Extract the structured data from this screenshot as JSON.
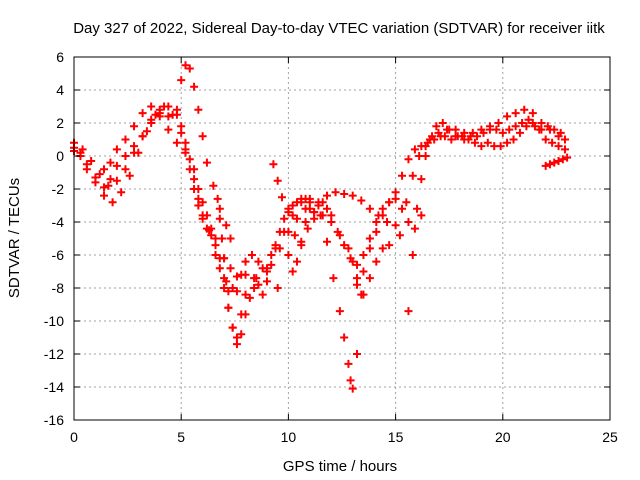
{
  "chart_data": {
    "type": "scatter",
    "title": "Day 327 of 2022, Sidereal Day-to-day VTEC variation (SDTVAR) for receiver iitk",
    "xlabel": "GPS time / hours",
    "ylabel": "SDTVAR / TECUs",
    "xlim": [
      0,
      25
    ],
    "ylim": [
      -16,
      6
    ],
    "xticks": [
      "0",
      "5",
      "10",
      "15",
      "20",
      "25"
    ],
    "yticks": [
      "6",
      "4",
      "2",
      "0",
      "-2",
      "-4",
      "-6",
      "-8",
      "-10",
      "-12",
      "-14",
      "-16"
    ],
    "grid": true,
    "marker": "+",
    "color": "#ff0000",
    "series": [
      {
        "x": [
          0.0,
          0.3,
          0.6,
          1.0,
          1.4,
          1.7,
          2.0,
          2.4,
          2.8,
          3.2,
          3.6,
          4.0,
          4.4,
          4.8,
          5.0,
          5.2,
          5.4,
          5.6,
          5.8,
          6.0,
          6.3,
          6.6,
          7.0,
          7.3,
          7.6,
          8.0,
          8.5,
          9.0,
          9.5
        ],
        "y": [
          0.5,
          0.2,
          -0.5,
          -1.3,
          -1.9,
          -1.4,
          -0.6,
          0.0,
          0.6,
          1.2,
          2.0,
          2.6,
          3.0,
          2.5,
          1.8,
          0.8,
          -0.2,
          -1.4,
          -2.6,
          -3.6,
          -4.5,
          -5.4,
          -6.2,
          -6.8,
          -7.3,
          -7.2,
          -7.4,
          -7.0,
          -8.0
        ]
      },
      {
        "x": [
          0.0,
          0.4,
          0.8,
          1.2,
          1.6,
          2.0,
          2.4,
          2.8,
          3.2,
          3.6,
          4.0,
          4.4,
          4.8,
          5.0,
          5.2,
          5.4,
          5.6,
          5.8,
          6.0,
          6.2,
          6.5,
          6.8,
          7.1,
          7.3
        ],
        "y": [
          0.8,
          0.4,
          -0.3,
          -1.1,
          -1.8,
          -1.5,
          -0.8,
          0.2,
          1.2,
          2.2,
          2.8,
          2.4,
          2.8,
          4.6,
          5.5,
          5.3,
          4.2,
          2.8,
          1.2,
          -0.4,
          -1.8,
          -3.2,
          -4.2,
          -5.0
        ]
      },
      {
        "x": [
          0.0,
          0.3,
          0.6,
          1.0,
          1.4,
          1.8,
          2.2,
          2.6,
          3.0,
          3.4,
          3.8,
          4.2,
          4.6,
          5.0,
          5.2,
          5.4,
          5.6,
          5.8,
          6.0,
          6.2,
          6.4
        ],
        "y": [
          0.3,
          0.0,
          -0.8,
          -1.6,
          -2.4,
          -2.8,
          -2.2,
          -1.2,
          0.2,
          1.5,
          2.5,
          3.0,
          2.5,
          1.4,
          0.4,
          -0.8,
          -2.0,
          -3.0,
          -3.8,
          -4.4,
          -4.8
        ]
      },
      {
        "x": [
          1.4,
          1.7,
          2.0,
          2.4,
          2.8,
          3.2,
          3.6,
          4.0,
          4.4,
          4.8,
          5.2,
          5.6,
          5.8,
          6.0,
          6.2,
          6.4,
          6.6,
          6.8,
          7.0,
          7.2,
          7.4,
          7.6,
          7.8,
          8.0,
          8.4,
          8.8,
          9.2,
          9.6,
          10.0,
          10.4,
          10.8,
          11.2,
          11.6,
          12.0,
          12.4,
          12.8,
          13.0,
          13.2,
          13.4
        ],
        "y": [
          -0.8,
          -0.4,
          0.4,
          1.0,
          1.8,
          2.6,
          3.0,
          2.4,
          1.6,
          0.8,
          0.2,
          -0.8,
          -2.0,
          -2.8,
          -3.6,
          -4.4,
          -5.0,
          -6.2,
          -8.0,
          -9.2,
          -10.4,
          -11.0,
          -9.6,
          -8.4,
          -7.4,
          -6.8,
          -6.0,
          -5.6,
          -4.6,
          -3.8,
          -3.2,
          -3.4,
          -3.6,
          -4.0,
          -4.8,
          -5.6,
          -6.4,
          -7.4,
          -8.4
        ]
      },
      {
        "x": [
          6.6,
          6.8,
          7.0,
          7.2,
          7.4,
          7.6,
          7.8,
          8.0,
          8.3,
          8.6,
          9.0,
          9.4,
          9.8,
          10.2,
          10.6,
          11.0,
          11.4,
          11.8,
          12.2,
          12.6,
          13.0,
          13.4,
          13.8,
          14.2,
          14.6,
          15.0
        ],
        "y": [
          -6.0,
          -6.8,
          -7.4,
          -8.2,
          -8.0,
          -8.2,
          -7.2,
          -6.4,
          -6.0,
          -6.4,
          -6.8,
          -5.6,
          -4.6,
          -3.6,
          -2.8,
          -2.6,
          -2.8,
          -2.4,
          -2.2,
          -2.3,
          -2.4,
          -2.7,
          -3.2,
          -3.6,
          -4.0,
          -4.2
        ]
      },
      {
        "x": [
          6.7,
          6.8,
          6.9,
          7.0,
          7.1,
          7.2,
          7.4,
          7.6,
          7.8,
          8.0,
          8.2,
          8.4,
          8.6,
          8.8,
          9.0,
          9.2,
          9.4,
          9.6,
          9.8,
          10.0,
          10.2,
          10.4,
          10.6,
          10.8,
          11.0
        ],
        "y": [
          -2.6,
          -3.8,
          -5.0,
          -6.2,
          -7.6,
          -9.2,
          -10.4,
          -11.4,
          -10.8,
          -9.6,
          -8.6,
          -8.0,
          -7.8,
          -8.4,
          -7.6,
          -6.6,
          -5.4,
          -4.6,
          -3.8,
          -3.2,
          -3.0,
          -2.8,
          -2.6,
          -2.6,
          -2.8
        ]
      },
      {
        "x": [
          9.3,
          9.5,
          9.7,
          10.0,
          10.3,
          10.6,
          10.9,
          11.2,
          11.5,
          11.8,
          12.1,
          12.4,
          12.6,
          12.8,
          12.9,
          13.0,
          13.2,
          13.5,
          13.8,
          14.1,
          14.4,
          14.7
        ],
        "y": [
          -0.5,
          -1.5,
          -2.5,
          -3.4,
          -4.8,
          -5.4,
          -4.4,
          -3.8,
          -3.6,
          -5.2,
          -7.4,
          -9.4,
          -11.0,
          -12.6,
          -13.6,
          -14.1,
          -12.0,
          -8.4,
          -7.4,
          -6.4,
          -5.6,
          -5.4
        ]
      },
      {
        "x": [
          10.0,
          10.2,
          10.4,
          10.6,
          10.8,
          11.0,
          11.2,
          11.4,
          11.6,
          11.8,
          12.0,
          12.3,
          12.6,
          12.9,
          13.2,
          13.5,
          13.8,
          14.1,
          14.4,
          14.7,
          15.0,
          15.3,
          15.6,
          15.9,
          16.2
        ],
        "y": [
          -6.0,
          -7.0,
          -6.4,
          -5.2,
          -4.0,
          -3.2,
          -3.4,
          -3.0,
          -2.8,
          -3.2,
          -3.6,
          -4.6,
          -5.4,
          -6.2,
          -6.6,
          -6.0,
          -5.0,
          -4.0,
          -3.2,
          -2.8,
          -2.6,
          -3.2,
          -4.0,
          -4.4,
          -3.6
        ]
      },
      {
        "x": [
          13.2,
          13.5,
          13.8,
          14.1,
          14.4,
          14.7,
          15.0,
          15.3,
          15.6,
          15.9,
          16.2,
          16.5,
          16.8,
          17.1,
          17.4,
          17.8,
          18.2,
          18.6,
          19.0,
          19.4,
          19.8,
          20.2,
          20.6,
          21.0,
          21.4,
          21.8,
          22.2,
          22.6,
          22.9
        ],
        "y": [
          -7.8,
          -7.0,
          -5.6,
          -4.6,
          -3.6,
          -2.8,
          -2.2,
          -1.2,
          -0.2,
          0.4,
          0.6,
          0.8,
          1.0,
          1.2,
          1.6,
          1.2,
          1.0,
          1.4,
          1.6,
          1.8,
          2.0,
          2.4,
          2.6,
          2.8,
          2.6,
          2.0,
          1.6,
          1.2,
          1.0
        ]
      },
      {
        "x": [
          15.6,
          15.8,
          16.0,
          16.2,
          16.4,
          16.6,
          16.9,
          17.2,
          17.5,
          17.8,
          18.1,
          18.4,
          18.7,
          19.0,
          19.3,
          19.6,
          19.9,
          20.2,
          20.5,
          20.8,
          21.1,
          21.4,
          21.7,
          22.0,
          22.3,
          22.6,
          22.9
        ],
        "y": [
          -9.4,
          -6.0,
          -3.2,
          -1.4,
          0.0,
          1.0,
          1.8,
          2.0,
          1.6,
          1.6,
          1.2,
          1.0,
          0.8,
          0.6,
          0.8,
          0.6,
          0.6,
          0.8,
          1.0,
          1.4,
          1.8,
          2.0,
          1.6,
          1.0,
          0.8,
          0.6,
          0.4
        ]
      },
      {
        "x": [
          15.2,
          15.5,
          15.8,
          16.1,
          16.4,
          16.7,
          17.0,
          17.3,
          17.6,
          17.9,
          18.2,
          18.5,
          18.8,
          19.1,
          19.4,
          19.7,
          20.0,
          20.3,
          20.6,
          20.9,
          21.2,
          21.5,
          21.8,
          22.1,
          22.4,
          22.7
        ],
        "y": [
          -4.8,
          -2.8,
          -1.2,
          0.0,
          0.6,
          1.2,
          1.4,
          1.2,
          1.0,
          1.2,
          1.4,
          1.2,
          1.2,
          1.4,
          1.6,
          1.6,
          1.4,
          1.6,
          1.8,
          2.0,
          2.2,
          1.8,
          1.6,
          1.8,
          1.6,
          1.4
        ]
      },
      {
        "x": [
          22.0,
          22.2,
          22.4,
          22.6,
          22.8,
          23.0
        ],
        "y": [
          -0.6,
          -0.5,
          -0.4,
          -0.3,
          -0.2,
          -0.1
        ]
      }
    ]
  }
}
